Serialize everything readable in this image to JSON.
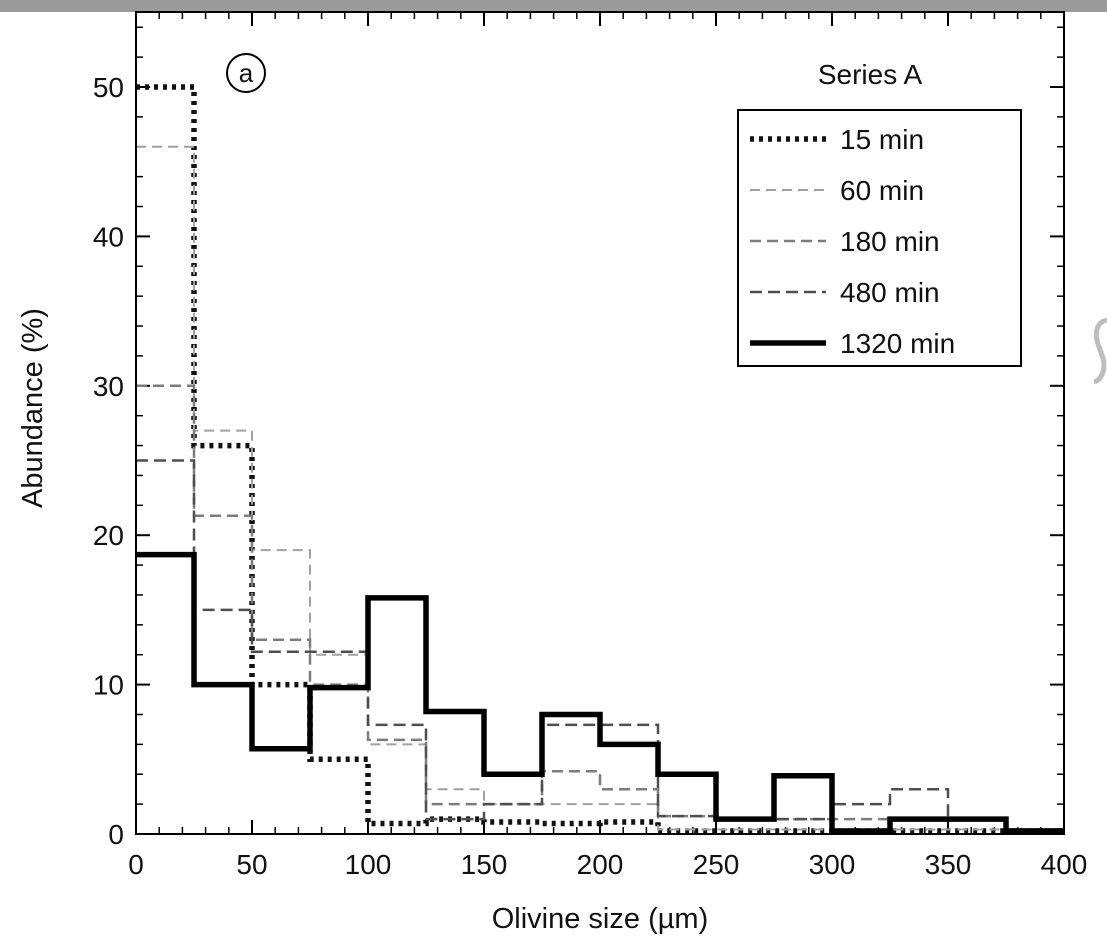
{
  "chart_data": {
    "type": "step",
    "panel_label": "a",
    "xlabel": "Olivine size (µm)",
    "ylabel": "Abundance (%)",
    "xlim": [
      0,
      400
    ],
    "ylim": [
      0,
      55
    ],
    "x_ticks": [
      0,
      50,
      100,
      150,
      200,
      250,
      300,
      350,
      400
    ],
    "y_ticks": [
      0,
      10,
      20,
      30,
      40,
      50
    ],
    "bin_edges": [
      0,
      25,
      50,
      75,
      100,
      125,
      150,
      175,
      200,
      225,
      250,
      275,
      300,
      325,
      350,
      375,
      400
    ],
    "legend_title": "Series A",
    "legend_position": "top-right",
    "grid": false,
    "series": [
      {
        "name": "15 min",
        "style": "dotted",
        "color": "#111111",
        "values": [
          50,
          26,
          10,
          5,
          0.7,
          1,
          0.8,
          0.7,
          0.8,
          0.2,
          0.2,
          0.2,
          0.2,
          0.2,
          0.2,
          0.2
        ]
      },
      {
        "name": "60 min",
        "style": "dashed-light",
        "color": "#9a9a9a",
        "values": [
          46,
          27,
          19,
          12,
          6,
          3,
          2,
          2,
          2,
          0.3,
          0.3,
          0.3,
          0.3,
          0.3,
          0.3,
          0.3
        ]
      },
      {
        "name": "180 min",
        "style": "dashed-mid",
        "color": "#7a7a7a",
        "values": [
          30,
          21.3,
          13,
          10,
          6.3,
          2,
          2,
          4.2,
          3,
          1.2,
          1,
          1,
          1,
          1,
          1,
          0.3
        ]
      },
      {
        "name": "480 min",
        "style": "dashed-dark",
        "color": "#555555",
        "values": [
          25,
          15,
          12.2,
          12.2,
          7.3,
          1,
          2,
          7.3,
          7.3,
          1.2,
          1,
          1,
          2,
          3,
          1,
          0.3
        ]
      },
      {
        "name": "1320 min",
        "style": "solid",
        "color": "#000000",
        "values": [
          18.7,
          10,
          5.7,
          9.8,
          15.8,
          8.2,
          4,
          8,
          6,
          4,
          1,
          3.9,
          0.2,
          1,
          1,
          0.2
        ]
      }
    ]
  }
}
